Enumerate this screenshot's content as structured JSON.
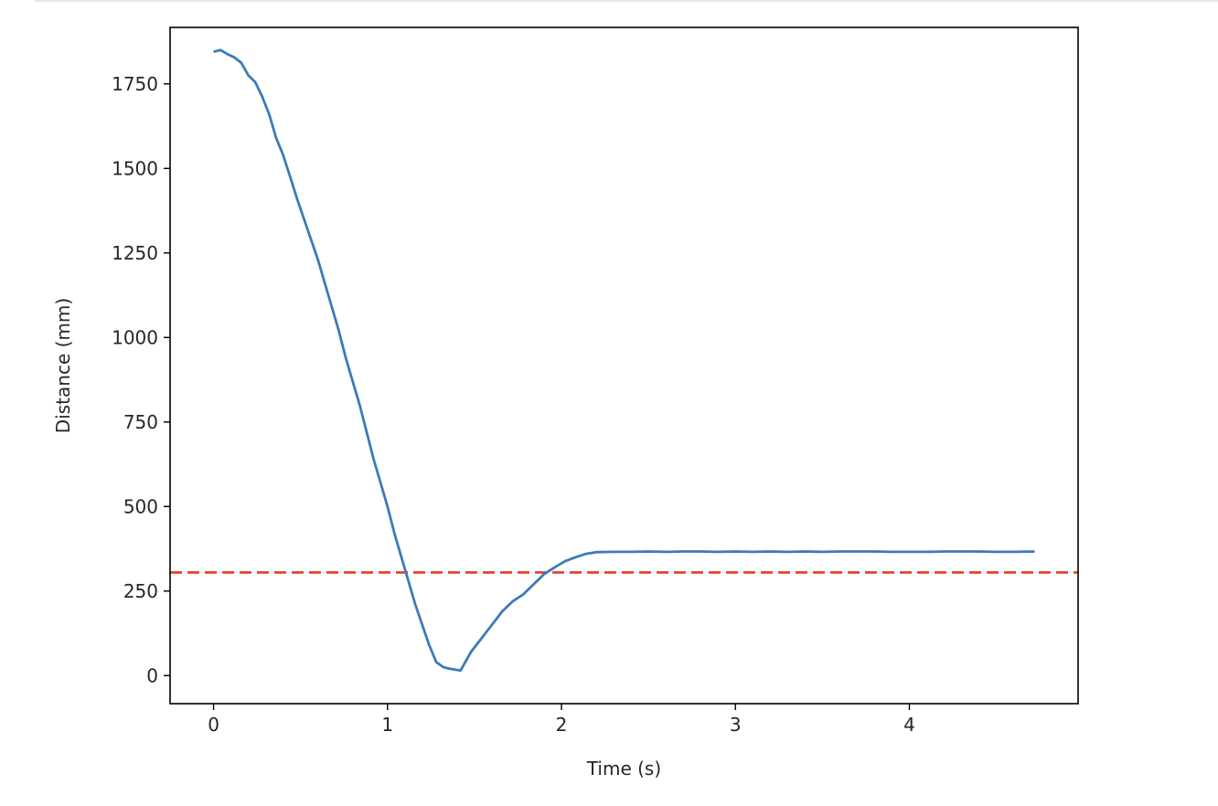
{
  "chart_data": {
    "type": "line",
    "xlabel": "Time (s)",
    "ylabel": "Distance (mm)",
    "xlim": [
      -0.25,
      4.97
    ],
    "ylim": [
      -83,
      1917
    ],
    "xticks": [
      0,
      1,
      2,
      3,
      4
    ],
    "yticks": [
      0,
      250,
      500,
      750,
      1000,
      1250,
      1500,
      1750
    ],
    "grid": false,
    "colors": {
      "series": "#3d7ab8",
      "reference": "#e8382c",
      "axes": "#000000"
    },
    "series": [
      {
        "x": [
          0.0,
          0.04,
          0.08,
          0.12,
          0.16,
          0.2,
          0.24,
          0.28,
          0.32,
          0.36,
          0.4,
          0.44,
          0.48,
          0.52,
          0.56,
          0.6,
          0.64,
          0.68,
          0.72,
          0.76,
          0.8,
          0.84,
          0.88,
          0.92,
          0.96,
          1.0,
          1.04,
          1.08,
          1.12,
          1.16,
          1.2,
          1.24,
          1.28,
          1.32,
          1.36,
          1.42,
          1.48,
          1.54,
          1.6,
          1.66,
          1.72,
          1.78,
          1.84,
          1.9,
          1.96,
          2.02,
          2.08,
          2.14,
          2.2,
          2.3,
          2.4,
          2.5,
          2.6,
          2.7,
          2.8,
          2.9,
          3.0,
          3.1,
          3.2,
          3.3,
          3.4,
          3.5,
          3.6,
          3.7,
          3.8,
          3.9,
          4.0,
          4.1,
          4.2,
          4.3,
          4.4,
          4.5,
          4.6,
          4.72
        ],
        "y": [
          1845,
          1850,
          1838,
          1828,
          1812,
          1775,
          1755,
          1712,
          1660,
          1590,
          1540,
          1475,
          1410,
          1350,
          1290,
          1230,
          1160,
          1090,
          1020,
          940,
          870,
          800,
          720,
          640,
          570,
          500,
          420,
          350,
          280,
          210,
          150,
          90,
          40,
          25,
          20,
          15,
          70,
          110,
          150,
          190,
          220,
          240,
          270,
          300,
          320,
          338,
          350,
          360,
          365,
          366,
          366,
          367,
          366,
          367,
          367,
          366,
          367,
          366,
          367,
          366,
          367,
          366,
          367,
          367,
          367,
          366,
          366,
          366,
          367,
          367,
          367,
          366,
          366,
          367
        ]
      }
    ],
    "reference_line": {
      "y": 305,
      "style": "dashed"
    }
  }
}
